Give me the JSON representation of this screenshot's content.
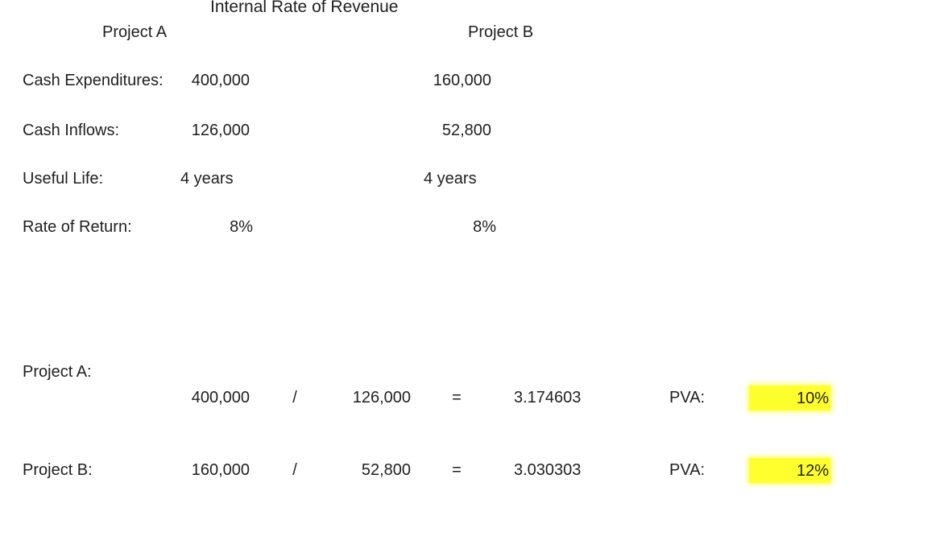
{
  "title": "Internal Rate of Revenue",
  "headers": {
    "project_a": "Project A",
    "project_b": "Project B"
  },
  "rows": {
    "cash_expenditures": {
      "label": "Cash Expenditures:",
      "a": "400,000",
      "b": "160,000"
    },
    "cash_inflows": {
      "label": "Cash Inflows:",
      "a": "126,000",
      "b": "52,800"
    },
    "useful_life": {
      "label": "Useful Life:",
      "a": "4 years",
      "b": "4 years"
    },
    "rate_of_return": {
      "label": "Rate of Return:",
      "a": "8%",
      "b": "8%"
    }
  },
  "calc_a": {
    "label": "Project A:",
    "expenditure": "400,000",
    "divide": "/",
    "inflow": "126,000",
    "equals": "=",
    "result": "3.174603",
    "pva_label": "PVA:",
    "pva_value": "10%"
  },
  "calc_b": {
    "label": "Project B:",
    "expenditure": "160,000",
    "divide": "/",
    "inflow": "52,800",
    "equals": "=",
    "result": "3.030303",
    "pva_label": "PVA:",
    "pva_value": "12%"
  },
  "colors": {
    "highlight": "#ffff2e"
  }
}
